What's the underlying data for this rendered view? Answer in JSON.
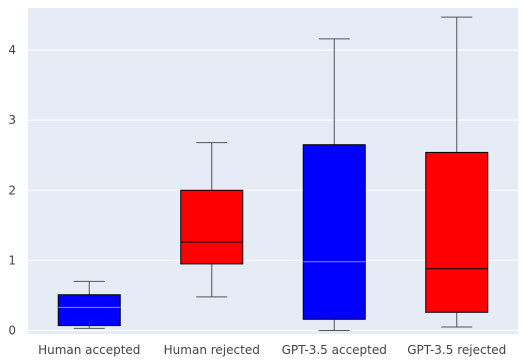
{
  "chart_data": {
    "type": "box",
    "title": "",
    "xlabel": "",
    "ylabel": "",
    "ylim": [
      -0.05,
      4.6
    ],
    "y_ticks": [
      0,
      1,
      2,
      3,
      4
    ],
    "y_tick_labels": [
      "0",
      "1",
      "2",
      "3",
      "4"
    ],
    "grid": true,
    "legend": "none",
    "categories": [
      "Human accepted",
      "Human rejected",
      "GPT-3.5 accepted",
      "GPT-3.5 rejected"
    ],
    "boxes": [
      {
        "category": "Human accepted",
        "min": 0.03,
        "q1": 0.07,
        "median": 0.33,
        "q3": 0.51,
        "max": 0.7,
        "fill": "#0000ff",
        "median_color": "#8888ff"
      },
      {
        "category": "Human rejected",
        "min": 0.48,
        "q1": 0.95,
        "median": 1.26,
        "q3": 2.0,
        "max": 2.68,
        "fill": "#ff0000",
        "median_color": "#000000"
      },
      {
        "category": "GPT-3.5 accepted",
        "min": 0.0,
        "q1": 0.16,
        "median": 0.98,
        "q3": 2.65,
        "max": 4.16,
        "fill": "#0000ff",
        "median_color": "#8888ff"
      },
      {
        "category": "GPT-3.5 rejected",
        "min": 0.05,
        "q1": 0.26,
        "median": 0.88,
        "q3": 2.54,
        "max": 4.47,
        "fill": "#ff0000",
        "median_color": "#000000"
      }
    ],
    "colors": {
      "plot_background": "#e5ecf6",
      "gridline": "#ffffff",
      "box_outline": "#000000",
      "whisker": "#555555"
    }
  }
}
